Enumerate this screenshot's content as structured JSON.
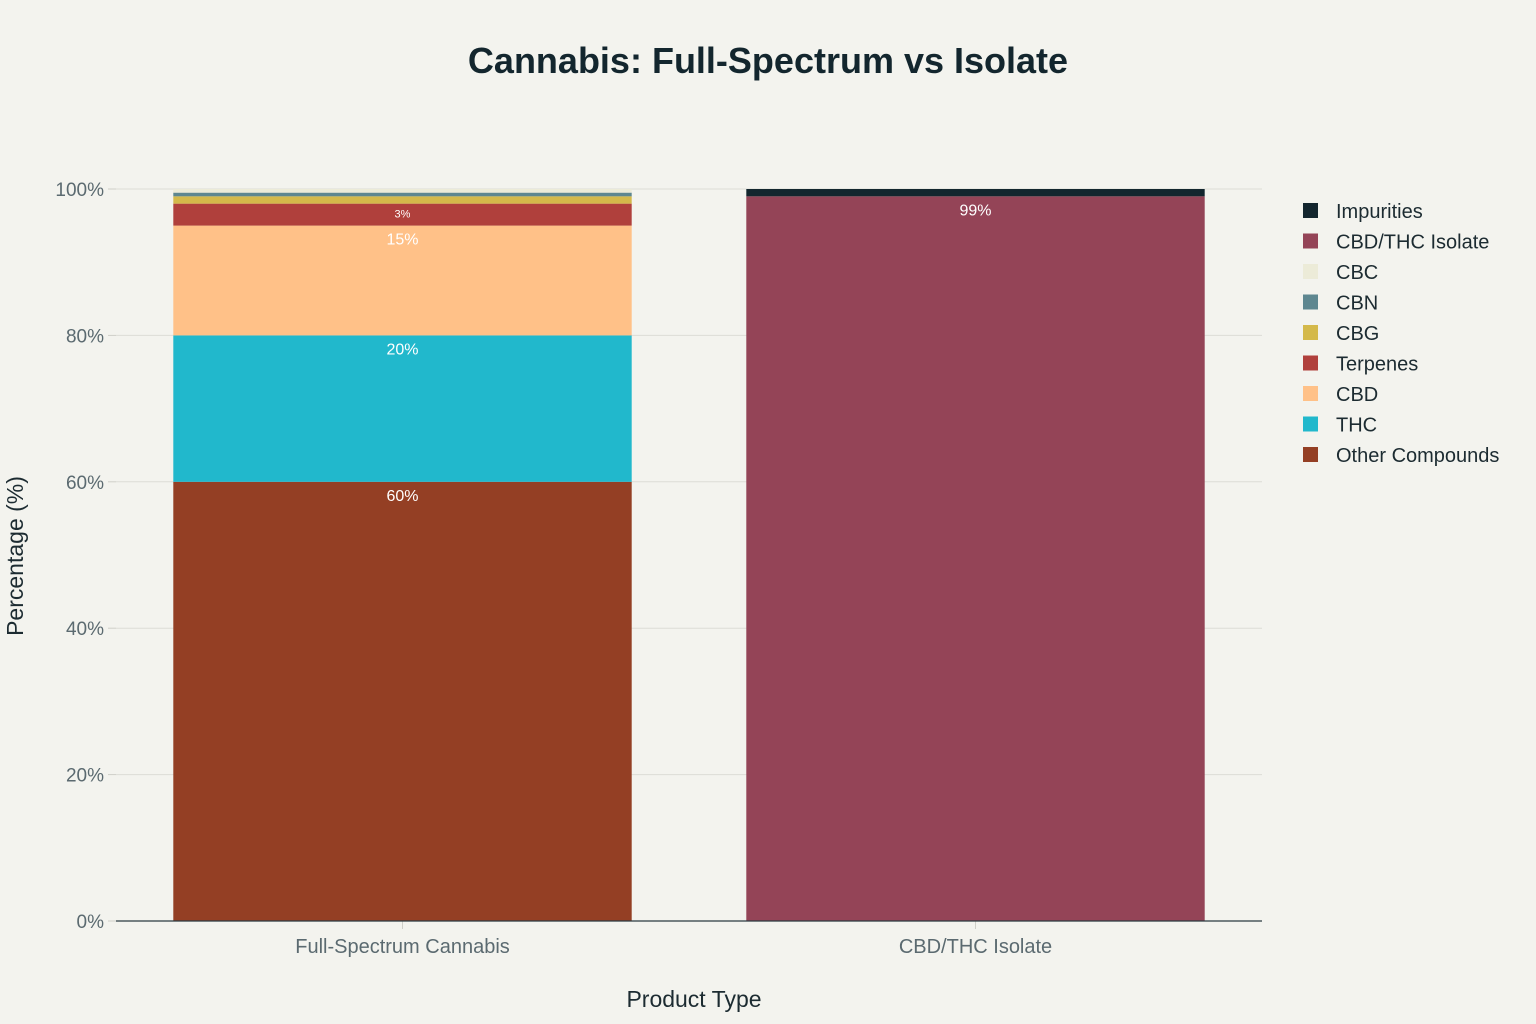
{
  "chart_data": {
    "type": "bar",
    "stacked": true,
    "title": "Cannabis: Full-Spectrum vs Isolate",
    "xlabel": "Product Type",
    "ylabel": "Percentage (%)",
    "ylim": [
      0,
      100
    ],
    "yticks": [
      "0%",
      "20%",
      "40%",
      "60%",
      "80%",
      "100%"
    ],
    "ytick_values": [
      0,
      20,
      40,
      60,
      80,
      100
    ],
    "grid": true,
    "legend_position": "right",
    "categories": [
      "Full-Spectrum Cannabis",
      "CBD/THC Isolate"
    ],
    "series": [
      {
        "name": "Other Compounds",
        "color": "#943f24",
        "values": [
          60,
          0
        ],
        "labels": [
          "60%",
          ""
        ]
      },
      {
        "name": "THC",
        "color": "#21b8cc",
        "values": [
          20,
          0
        ],
        "labels": [
          "20%",
          ""
        ]
      },
      {
        "name": "CBD",
        "color": "#ffc188",
        "values": [
          15,
          0
        ],
        "labels": [
          "15%",
          ""
        ]
      },
      {
        "name": "Terpenes",
        "color": "#b0403c",
        "values": [
          3,
          0
        ],
        "labels": [
          "3%",
          ""
        ]
      },
      {
        "name": "CBG",
        "color": "#d4b94a",
        "values": [
          1,
          0
        ],
        "labels": [
          "",
          ""
        ]
      },
      {
        "name": "CBN",
        "color": "#5e8790",
        "values": [
          0.5,
          0
        ],
        "labels": [
          "",
          ""
        ]
      },
      {
        "name": "CBC",
        "color": "#ecebd8",
        "values": [
          0.5,
          0
        ],
        "labels": [
          "",
          ""
        ]
      },
      {
        "name": "CBD/THC Isolate",
        "color": "#944457",
        "values": [
          0,
          99
        ],
        "labels": [
          "",
          "99%"
        ]
      },
      {
        "name": "Impurities",
        "color": "#13262e",
        "values": [
          0,
          1
        ],
        "labels": [
          "",
          ""
        ]
      }
    ],
    "legend_order": [
      "Impurities",
      "CBD/THC Isolate",
      "CBC",
      "CBN",
      "CBG",
      "Terpenes",
      "CBD",
      "THC",
      "Other Compounds"
    ]
  }
}
